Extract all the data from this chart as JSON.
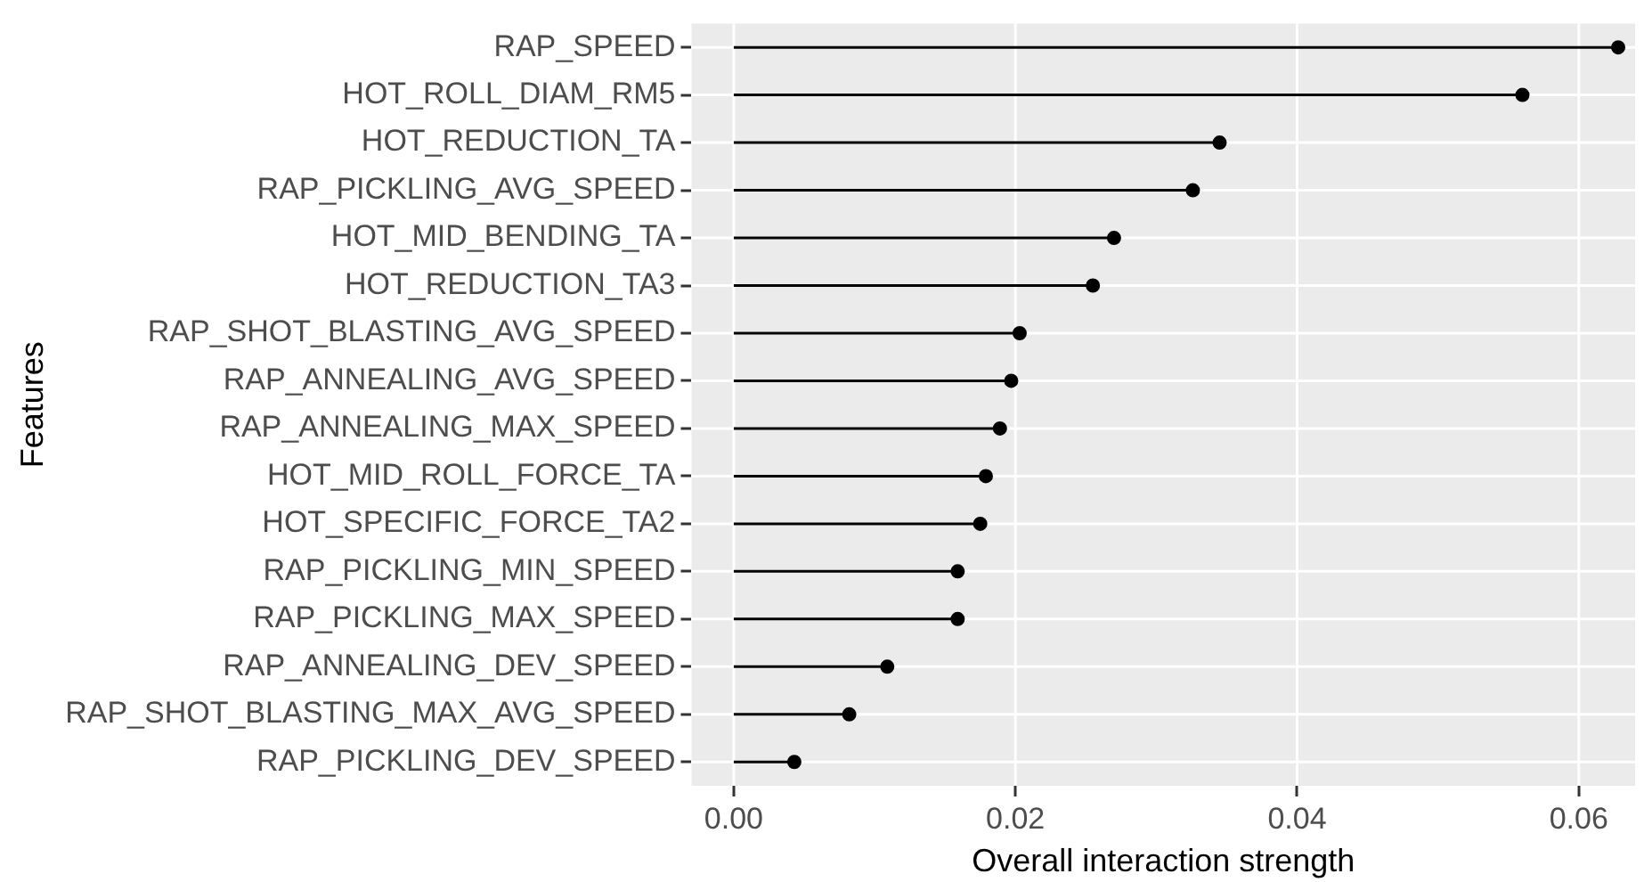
{
  "chart_data": {
    "type": "lollipop",
    "orientation": "horizontal",
    "xlabel": "Overall interaction strength",
    "ylabel": "Features",
    "categories": [
      "RAP_SPEED",
      "HOT_ROLL_DIAM_RM5",
      "HOT_REDUCTION_TA",
      "RAP_PICKLING_AVG_SPEED",
      "HOT_MID_BENDING_TA",
      "HOT_REDUCTION_TA3",
      "RAP_SHOT_BLASTING_AVG_SPEED",
      "RAP_ANNEALING_AVG_SPEED",
      "RAP_ANNEALING_MAX_SPEED",
      "HOT_MID_ROLL_FORCE_TA",
      "HOT_SPECIFIC_FORCE_TA2",
      "RAP_PICKLING_MIN_SPEED",
      "RAP_PICKLING_MAX_SPEED",
      "RAP_ANNEALING_DEV_SPEED",
      "RAP_SHOT_BLASTING_MAX_AVG_SPEED",
      "RAP_PICKLING_DEV_SPEED"
    ],
    "values": [
      0.0628,
      0.056,
      0.0345,
      0.0326,
      0.027,
      0.0255,
      0.0203,
      0.0197,
      0.0189,
      0.0179,
      0.0175,
      0.0159,
      0.0159,
      0.0109,
      0.0082,
      0.0043
    ],
    "color": "#000000",
    "xlim": [
      -0.003,
      0.064
    ],
    "xticks": [
      {
        "value": 0,
        "label": "0.00"
      },
      {
        "value": 0.02,
        "label": "0.02"
      },
      {
        "value": 0.04,
        "label": "0.04"
      },
      {
        "value": 0.06,
        "label": "0.06"
      }
    ],
    "grid": true,
    "marker": "circle",
    "legend": false
  }
}
